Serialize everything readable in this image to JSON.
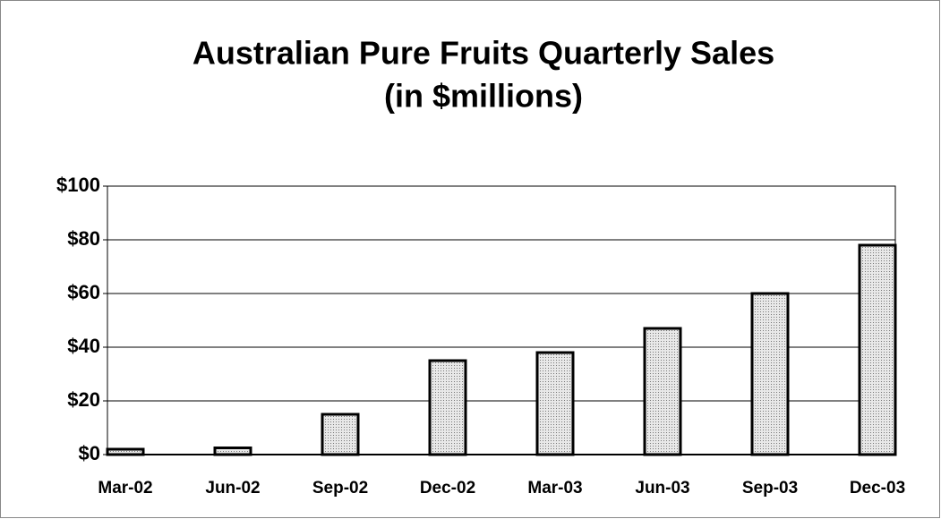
{
  "chart_data": {
    "type": "bar",
    "title": "Australian Pure Fruits Quarterly Sales",
    "subtitle": "(in $millions)",
    "categories": [
      "Mar-02",
      "Jun-02",
      "Sep-02",
      "Dec-02",
      "Mar-03",
      "Jun-03",
      "Sep-03",
      "Dec-03"
    ],
    "values": [
      2,
      2.5,
      15,
      35,
      38,
      47,
      60,
      78
    ],
    "color": "#cfcfcf",
    "ylim": [
      0,
      100
    ],
    "yticks": [
      {
        "value": 0,
        "label": "$0"
      },
      {
        "value": 20,
        "label": "$20"
      },
      {
        "value": 40,
        "label": "$40"
      },
      {
        "value": 60,
        "label": "$60"
      },
      {
        "value": 80,
        "label": "$80"
      },
      {
        "value": 100,
        "label": "$100"
      }
    ],
    "grid": true
  }
}
